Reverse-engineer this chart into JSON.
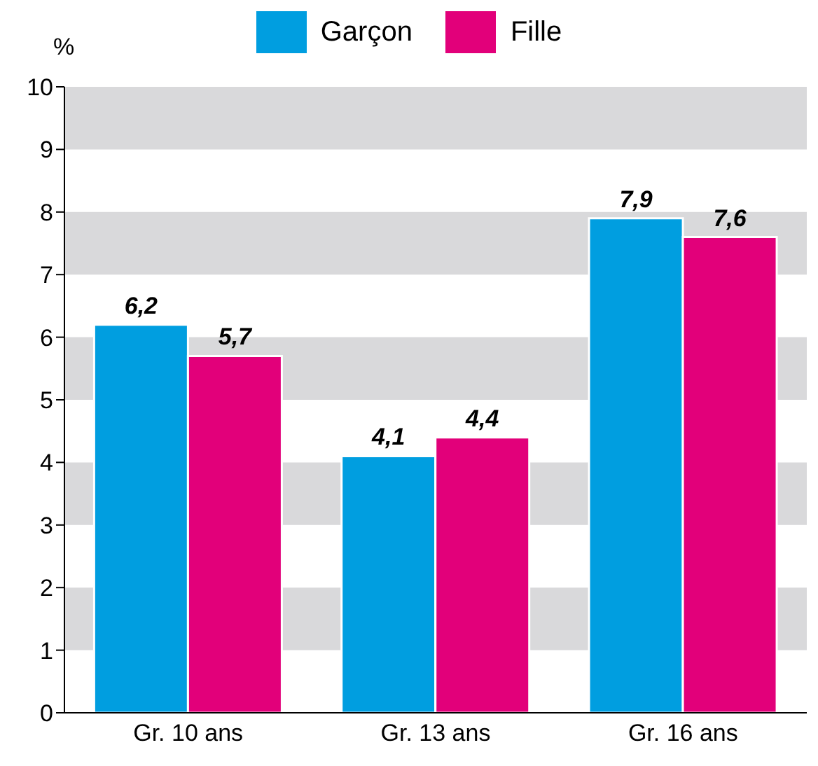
{
  "chart_data": {
    "type": "bar",
    "ylabel": "%",
    "categories": [
      "Gr. 10 ans",
      "Gr. 13 ans",
      "Gr. 16 ans"
    ],
    "series": [
      {
        "name": "Garçon",
        "color": "#009ee0",
        "values": [
          6.2,
          4.1,
          7.9
        ],
        "value_labels": [
          "6,2",
          "4,1",
          "7,9"
        ]
      },
      {
        "name": "Fille",
        "color": "#e2007a",
        "values": [
          5.7,
          4.4,
          7.6
        ],
        "value_labels": [
          "5,7",
          "4,4",
          "7,6"
        ]
      }
    ],
    "ylim": [
      0,
      10
    ],
    "yticks": [
      0,
      1,
      2,
      3,
      4,
      5,
      6,
      7,
      8,
      9,
      10
    ],
    "grid": false,
    "legend": "top",
    "bands": [
      {
        "axis": "y",
        "from": 1,
        "to": 2,
        "color": "#d9d9db"
      },
      {
        "axis": "y",
        "from": 3,
        "to": 4,
        "color": "#d9d9db"
      },
      {
        "axis": "y",
        "from": 5,
        "to": 6,
        "color": "#d9d9db"
      },
      {
        "axis": "y",
        "from": 7,
        "to": 8,
        "color": "#d9d9db"
      },
      {
        "axis": "y",
        "from": 9,
        "to": 10,
        "color": "#d9d9db"
      }
    ]
  }
}
